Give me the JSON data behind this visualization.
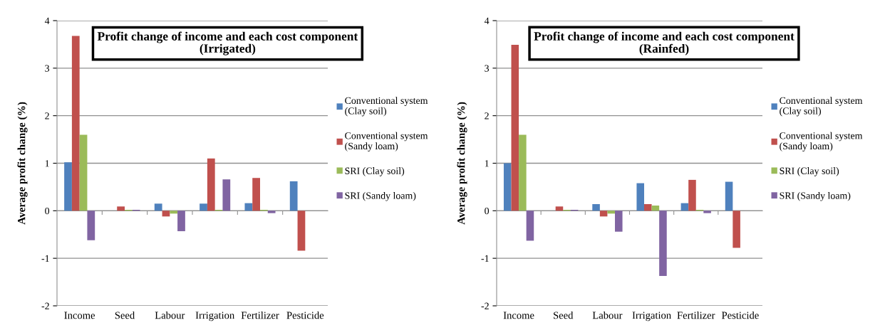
{
  "chart_data": [
    {
      "type": "bar",
      "title": "Profit change of income and each cost component\n(Irrigated)",
      "ylabel": "Average profit change (%)",
      "categories": [
        "Income",
        "Seed",
        "Labour",
        "Irrigation",
        "Fertilizer",
        "Pesticide"
      ],
      "series": [
        {
          "name": "Conventional system\n(Clay soil)",
          "color": "#4f81bd",
          "values": [
            1.02,
            0,
            0.15,
            0.15,
            0.16,
            0.62
          ]
        },
        {
          "name": "Conventional system\n(Sandy loam)",
          "color": "#c0504d",
          "values": [
            3.68,
            0.09,
            -0.12,
            1.1,
            0.69,
            -0.84
          ]
        },
        {
          "name": "SRI (Clay soil)",
          "color": "#9bbb59",
          "values": [
            1.6,
            0.02,
            -0.06,
            0.02,
            0.02,
            0
          ]
        },
        {
          "name": "SRI (Sandy loam)",
          "color": "#8064a2",
          "values": [
            -0.62,
            0.02,
            -0.43,
            0.66,
            -0.05,
            0
          ]
        }
      ],
      "ylim": [
        -2,
        4
      ],
      "yticks": [
        -2,
        -1,
        0,
        1,
        2,
        3,
        4
      ],
      "grid": "y",
      "legend": "right"
    },
    {
      "type": "bar",
      "title": "Profit change of income and each cost component\n(Rainfed)",
      "ylabel": "Average profit change (%)",
      "categories": [
        "Income",
        "Seed",
        "Labour",
        "Irrigation",
        "Fertilizer",
        "Pesticide"
      ],
      "series": [
        {
          "name": "Conventional system\n(Clay soil)",
          "color": "#4f81bd",
          "values": [
            1.0,
            0,
            0.14,
            0.58,
            0.16,
            0.61
          ]
        },
        {
          "name": "Conventional system\n(Sandy loam)",
          "color": "#c0504d",
          "values": [
            3.49,
            0.09,
            -0.12,
            0.14,
            0.65,
            -0.78
          ]
        },
        {
          "name": "SRI (Clay soil)",
          "color": "#9bbb59",
          "values": [
            1.6,
            0.02,
            -0.06,
            0.11,
            0.02,
            0
          ]
        },
        {
          "name": "SRI (Sandy loam)",
          "color": "#8064a2",
          "values": [
            -0.63,
            0.02,
            -0.44,
            -1.37,
            -0.05,
            0
          ]
        }
      ],
      "ylim": [
        -2,
        4
      ],
      "yticks": [
        -2,
        -1,
        0,
        1,
        2,
        3,
        4
      ],
      "grid": "y",
      "legend": "right"
    }
  ]
}
